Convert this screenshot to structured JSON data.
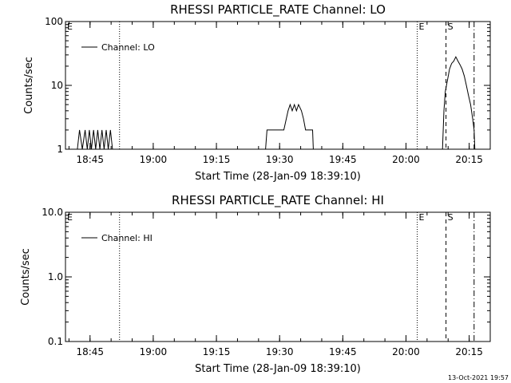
{
  "footer": {
    "timestamp": "13-Oct-2021 19:57"
  },
  "chart_data": [
    {
      "type": "line",
      "title": "RHESSI PARTICLE_RATE Channel: LO",
      "xlabel": "Start Time (28-Jan-09 18:39:10)",
      "ylabel": "Counts/sec",
      "yscale": "log",
      "ylim": [
        1,
        100
      ],
      "xlim": [
        "18:39:10",
        "20:20:00"
      ],
      "x_ticks": [
        "18:45",
        "19:00",
        "19:15",
        "19:30",
        "19:45",
        "20:00",
        "20:15"
      ],
      "y_ticks": [
        "1",
        "10",
        "100"
      ],
      "legend": {
        "position": "top-left",
        "entries": [
          "Channel: LO"
        ]
      },
      "markers": [
        {
          "label": "E",
          "time": "18:39:10",
          "style": "none"
        },
        {
          "label": "",
          "time": "18:52:00",
          "style": "dotted"
        },
        {
          "label": "E",
          "time": "20:02:40",
          "style": "dotted"
        },
        {
          "label": "S",
          "time": "20:09:30",
          "style": "dashed"
        },
        {
          "label": "",
          "time": "20:16:10",
          "style": "dashdot"
        }
      ],
      "series": [
        {
          "name": "Channel: LO",
          "x": [
            "18:42:00",
            "18:42:30",
            "18:43:10",
            "18:43:50",
            "18:44:20",
            "18:44:50",
            "18:45:20",
            "18:45:50",
            "18:46:20",
            "18:46:50",
            "18:47:20",
            "18:47:50",
            "18:48:20",
            "18:48:50",
            "18:49:20",
            "18:49:50",
            "18:50:20",
            "18:50:40",
            "19:26:40",
            "19:27:00",
            "19:28:50",
            "19:30:00",
            "19:31:00",
            "19:32:00",
            "19:32:30",
            "19:33:00",
            "19:33:30",
            "19:34:00",
            "19:34:30",
            "19:35:10",
            "19:35:40",
            "19:36:10",
            "19:37:10",
            "19:37:50",
            "19:38:00",
            "20:08:40",
            "20:09:00",
            "20:09:20",
            "20:09:50",
            "20:10:20",
            "20:10:50",
            "20:11:20",
            "20:11:50",
            "20:12:20",
            "20:12:50",
            "20:13:20",
            "20:13:50",
            "20:14:20",
            "20:14:50",
            "20:15:20",
            "20:15:50",
            "20:16:10",
            "20:16:20"
          ],
          "y": [
            1,
            2,
            1,
            2,
            1,
            2,
            1,
            2,
            1,
            2,
            1,
            2,
            1,
            2,
            1,
            2,
            1,
            1,
            1,
            2,
            2,
            2,
            2,
            4,
            5,
            4,
            5,
            4,
            5,
            4,
            3,
            2,
            2,
            2,
            1,
            1,
            4,
            8,
            12,
            18,
            22,
            24,
            28,
            24,
            21,
            18,
            14,
            10,
            7,
            5,
            3,
            2,
            1
          ]
        }
      ]
    },
    {
      "type": "line",
      "title": "RHESSI PARTICLE_RATE Channel: HI",
      "xlabel": "Start Time (28-Jan-09 18:39:10)",
      "ylabel": "Counts/sec",
      "yscale": "log",
      "ylim": [
        0.1,
        10.0
      ],
      "xlim": [
        "18:39:10",
        "20:20:00"
      ],
      "x_ticks": [
        "18:45",
        "19:00",
        "19:15",
        "19:30",
        "19:45",
        "20:00",
        "20:15"
      ],
      "y_ticks": [
        "0.1",
        "1.0",
        "10.0"
      ],
      "legend": {
        "position": "top-left",
        "entries": [
          "Channel: HI"
        ]
      },
      "markers": [
        {
          "label": "E",
          "time": "18:39:10",
          "style": "none"
        },
        {
          "label": "",
          "time": "18:52:00",
          "style": "dotted"
        },
        {
          "label": "E",
          "time": "20:02:40",
          "style": "dotted"
        },
        {
          "label": "S",
          "time": "20:09:30",
          "style": "dashed"
        },
        {
          "label": "",
          "time": "20:16:10",
          "style": "dashdot"
        }
      ],
      "series": [
        {
          "name": "Channel: HI",
          "x": [],
          "y": []
        }
      ]
    }
  ]
}
